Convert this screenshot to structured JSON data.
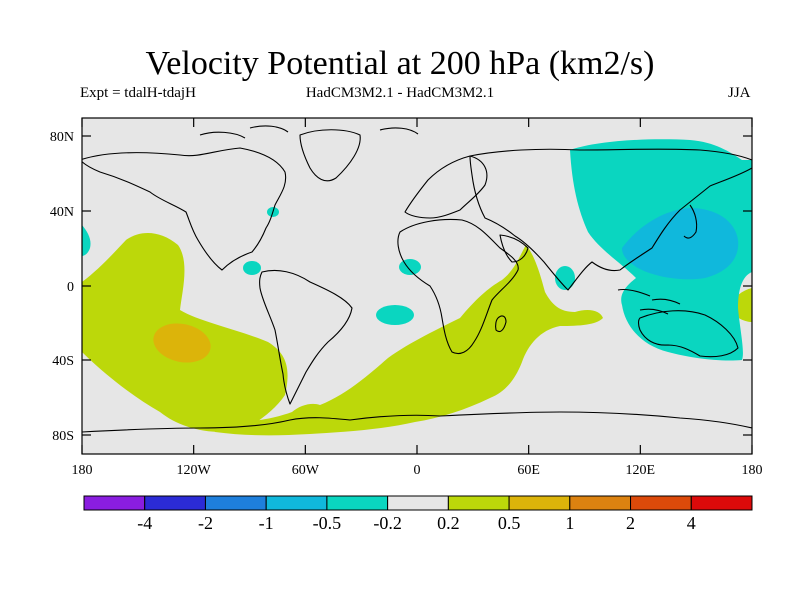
{
  "title": "Velocity Potential at 200 hPa (km2/s)",
  "subtitle_left": "Expt = tdalH-tdajH",
  "subtitle_center": "HadCM3M2.1 - HadCM3M2.1",
  "subtitle_right": "JJA",
  "map": {
    "background_color": "#e6e6e6",
    "lat_ticks": [
      "80N",
      "40N",
      "0",
      "40S",
      "80S"
    ],
    "lon_ticks": [
      "180",
      "120W",
      "60W",
      "0",
      "60E",
      "120E",
      "180"
    ]
  },
  "colorbar": {
    "labels": [
      "-4",
      "-2",
      "-1",
      "-0.5",
      "-0.2",
      "0.2",
      "0.5",
      "1",
      "2",
      "4"
    ],
    "colors": [
      "#8a1de0",
      "#2b2bd6",
      "#1e7fdc",
      "#10b8dc",
      "#0ad6c0",
      "#e6e6e6",
      "#bcd80a",
      "#dcb40a",
      "#dc8210",
      "#dc4a0a",
      "#dc0a0a"
    ]
  }
}
